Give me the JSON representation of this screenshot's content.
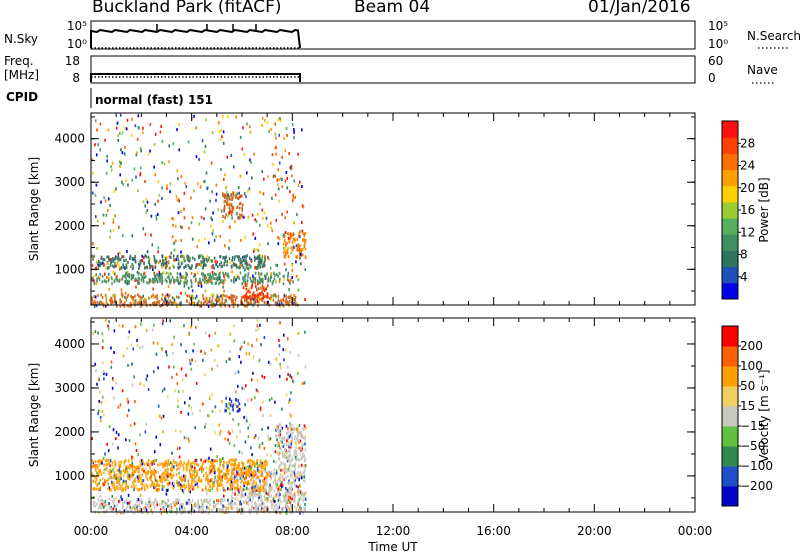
{
  "header": {
    "station": "Buckland Park (fitACF)",
    "beam": "Beam 04",
    "date": "01/Jan/2016"
  },
  "summary": {
    "nsky_label": "N.Sky",
    "nsky_ticks": [
      "10^5",
      "10^0"
    ],
    "freq_label": "Freq.",
    "freq_unit": "[MHz]",
    "freq_ticks": [
      "18",
      "8"
    ],
    "cpid_label": "CPID",
    "nsearch_label": "N.Search",
    "nsearch_ticks": [
      "10^5",
      "10^0"
    ],
    "nave_label": "Nave",
    "nave_ticks": [
      "60",
      "0"
    ],
    "cpid_text": "normal (fast) 151"
  },
  "chart_data": [
    {
      "type": "heatmap",
      "name": "power",
      "ylabel": "Slant Range [km]",
      "xlabel": "Time UT",
      "y_ticks": [
        "4000",
        "3000",
        "2000",
        "1000"
      ],
      "ylim": [
        180,
        4590
      ],
      "x_ticks": [
        "00:00",
        "04:00",
        "08:00",
        "12:00",
        "16:00",
        "20:00",
        "00:00"
      ],
      "xlim_hours": [
        0,
        24
      ],
      "data_extent_hours": [
        0,
        8.5
      ],
      "colorbar": {
        "label": "Power [dB]",
        "ticks": [
          "28",
          "24",
          "20",
          "16",
          "12",
          "8",
          "4"
        ],
        "colors": [
          "#0000e6",
          "#1f4fb8",
          "#2e7560",
          "#3f9060",
          "#55b060",
          "#9acd32",
          "#ffd000",
          "#ffa000",
          "#ff7000",
          "#ff4000",
          "#ff1010"
        ]
      },
      "features": [
        {
          "desc": "scatter band",
          "time_start": 0.0,
          "time_end": 8.2,
          "range_start": 180,
          "range_end": 450,
          "mean_color": "#d07020"
        },
        {
          "desc": "scatter band",
          "time_start": 0.0,
          "time_end": 8.0,
          "range_start": 700,
          "range_end": 950,
          "mean_color": "#4a9060"
        },
        {
          "desc": "scatter band",
          "time_start": 0.0,
          "time_end": 7.0,
          "range_start": 1050,
          "range_end": 1350,
          "mean_color": "#3a7560"
        },
        {
          "desc": "echo patch",
          "time_start": 6.0,
          "time_end": 7.0,
          "range_start": 350,
          "range_end": 700,
          "mean_color": "#ff3000"
        },
        {
          "desc": "echo patch",
          "time_start": 7.6,
          "time_end": 8.5,
          "range_start": 1300,
          "range_end": 1900,
          "mean_color": "#ff8000"
        },
        {
          "desc": "echo patch",
          "time_start": 5.2,
          "time_end": 6.0,
          "range_start": 2200,
          "range_end": 2800,
          "mean_color": "#d06020"
        }
      ]
    },
    {
      "type": "heatmap",
      "name": "velocity",
      "ylabel": "Slant Range [km]",
      "xlabel": "Time UT",
      "y_ticks": [
        "4000",
        "3000",
        "2000",
        "1000"
      ],
      "ylim": [
        180,
        4590
      ],
      "x_ticks": [
        "00:00",
        "04:00",
        "08:00",
        "12:00",
        "16:00",
        "20:00",
        "00:00"
      ],
      "xlim_hours": [
        0,
        24
      ],
      "data_extent_hours": [
        0,
        8.5
      ],
      "colorbar": {
        "label": "Velocity [m s⁻¹]",
        "ticks": [
          "200",
          "100",
          "50",
          "15",
          "−15",
          "−50",
          "−100",
          "−200"
        ],
        "colors": [
          "#0000c8",
          "#2050c8",
          "#2e8a50",
          "#60c040",
          "#c8c8c0",
          "#f0d060",
          "#ffa000",
          "#ff6000",
          "#ff0000"
        ]
      },
      "features": [
        {
          "desc": "ground scatter",
          "time_start": 0.0,
          "time_end": 8.5,
          "range_start": 180,
          "range_end": 500,
          "mean_color": "#c8c8c0"
        },
        {
          "desc": "ground scatter",
          "time_start": 5.5,
          "time_end": 8.5,
          "range_start": 500,
          "range_end": 1200,
          "mean_color": "#c8c8c0"
        },
        {
          "desc": "ground scatter",
          "time_start": 7.3,
          "time_end": 8.5,
          "range_start": 1200,
          "range_end": 2200,
          "mean_color": "#c8c8c0"
        },
        {
          "desc": "mixed",
          "time_start": 0.0,
          "time_end": 7.0,
          "range_start": 700,
          "range_end": 1400,
          "mean_color": "#ffa000"
        },
        {
          "desc": "echo patch",
          "time_start": 5.3,
          "time_end": 5.9,
          "range_start": 2500,
          "range_end": 2800,
          "mean_color": "#2040c8"
        }
      ]
    }
  ]
}
